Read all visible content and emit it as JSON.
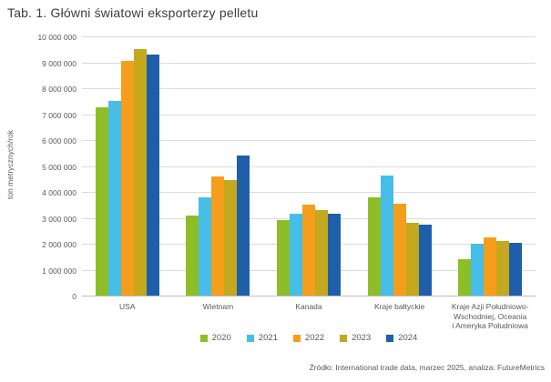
{
  "source": "Źródło: International trade data, marzec 2025, analiza: FutureMetrics",
  "chart_data": {
    "type": "bar",
    "title": "Tab. 1. Główni światowi eksporterzy pelletu",
    "xlabel": "",
    "ylabel": "ton metrycznych/rok",
    "ylim": [
      0,
      10000000
    ],
    "ytick_step": 1000000,
    "ytick_labels": [
      "0",
      "1 000 000",
      "2 000 000",
      "3 000 000",
      "4 000 000",
      "5 000 000",
      "6 000 000",
      "7 000 000",
      "8 000 000",
      "9 000 000",
      "10 000 000"
    ],
    "grid": "horizontal",
    "legend_position": "bottom-center",
    "categories": [
      "USA",
      "Wietnam",
      "Kanada",
      "Kraje bałtyckie",
      "Kraje Azji Południowo-Wschodniej, Oceania i Ameryka Południowa"
    ],
    "category_label_lines": [
      [
        "USA"
      ],
      [
        "Wietnam"
      ],
      [
        "Kanada"
      ],
      [
        "Kraje bałtyckie"
      ],
      [
        "Kraje Azji Południowo-",
        "Wschodniej, Oceania",
        "i Ameryka Południowa"
      ]
    ],
    "series": [
      {
        "name": "2020",
        "color": "#8dbe28",
        "values": [
          7250000,
          3100000,
          2900000,
          3800000,
          1400000
        ]
      },
      {
        "name": "2021",
        "color": "#46bee8",
        "values": [
          7500000,
          3800000,
          3150000,
          4650000,
          2000000
        ]
      },
      {
        "name": "2022",
        "color": "#f59e1b",
        "values": [
          9050000,
          4600000,
          3500000,
          3550000,
          2250000
        ]
      },
      {
        "name": "2023",
        "color": "#c4a81e",
        "values": [
          9500000,
          4450000,
          3300000,
          2800000,
          2100000
        ]
      },
      {
        "name": "2024",
        "color": "#1f5fa9",
        "values": [
          9300000,
          5400000,
          3150000,
          2750000,
          2050000
        ]
      }
    ],
    "colors": {
      "gridline": "#dcdcdc",
      "axis_line": "#bdbdbd",
      "text": "#595959",
      "title_text": "#3c3c3c"
    }
  }
}
